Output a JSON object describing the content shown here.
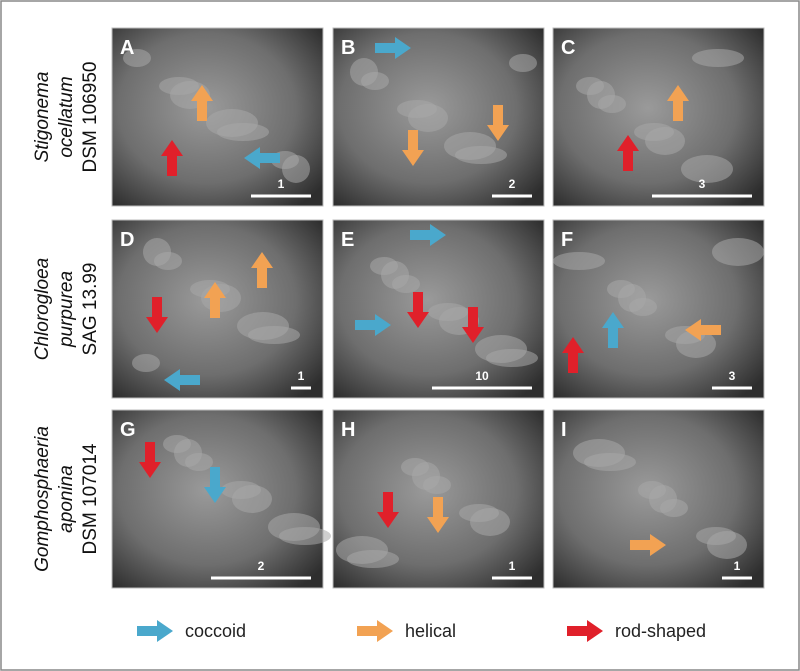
{
  "rows": [
    {
      "genus": "Stigonema",
      "species": "ocellatum",
      "strain": "DSM 106950",
      "panels": [
        {
          "letter": "A",
          "scale": "1"
        },
        {
          "letter": "B",
          "scale": "2"
        },
        {
          "letter": "C",
          "scale": "3"
        }
      ]
    },
    {
      "genus": "Chlorogloea",
      "species": "purpurea",
      "strain": "SAG 13.99",
      "panels": [
        {
          "letter": "D",
          "scale": "1"
        },
        {
          "letter": "E",
          "scale": "10"
        },
        {
          "letter": "F",
          "scale": "3"
        }
      ]
    },
    {
      "genus": "Gomphosphaeria",
      "species": "aponina",
      "strain": "DSM 107014",
      "panels": [
        {
          "letter": "G",
          "scale": "2"
        },
        {
          "letter": "H",
          "scale": "1"
        },
        {
          "letter": "I",
          "scale": "1"
        }
      ]
    }
  ],
  "legend": [
    "coccoid",
    "helical",
    "rod-shaped"
  ]
}
